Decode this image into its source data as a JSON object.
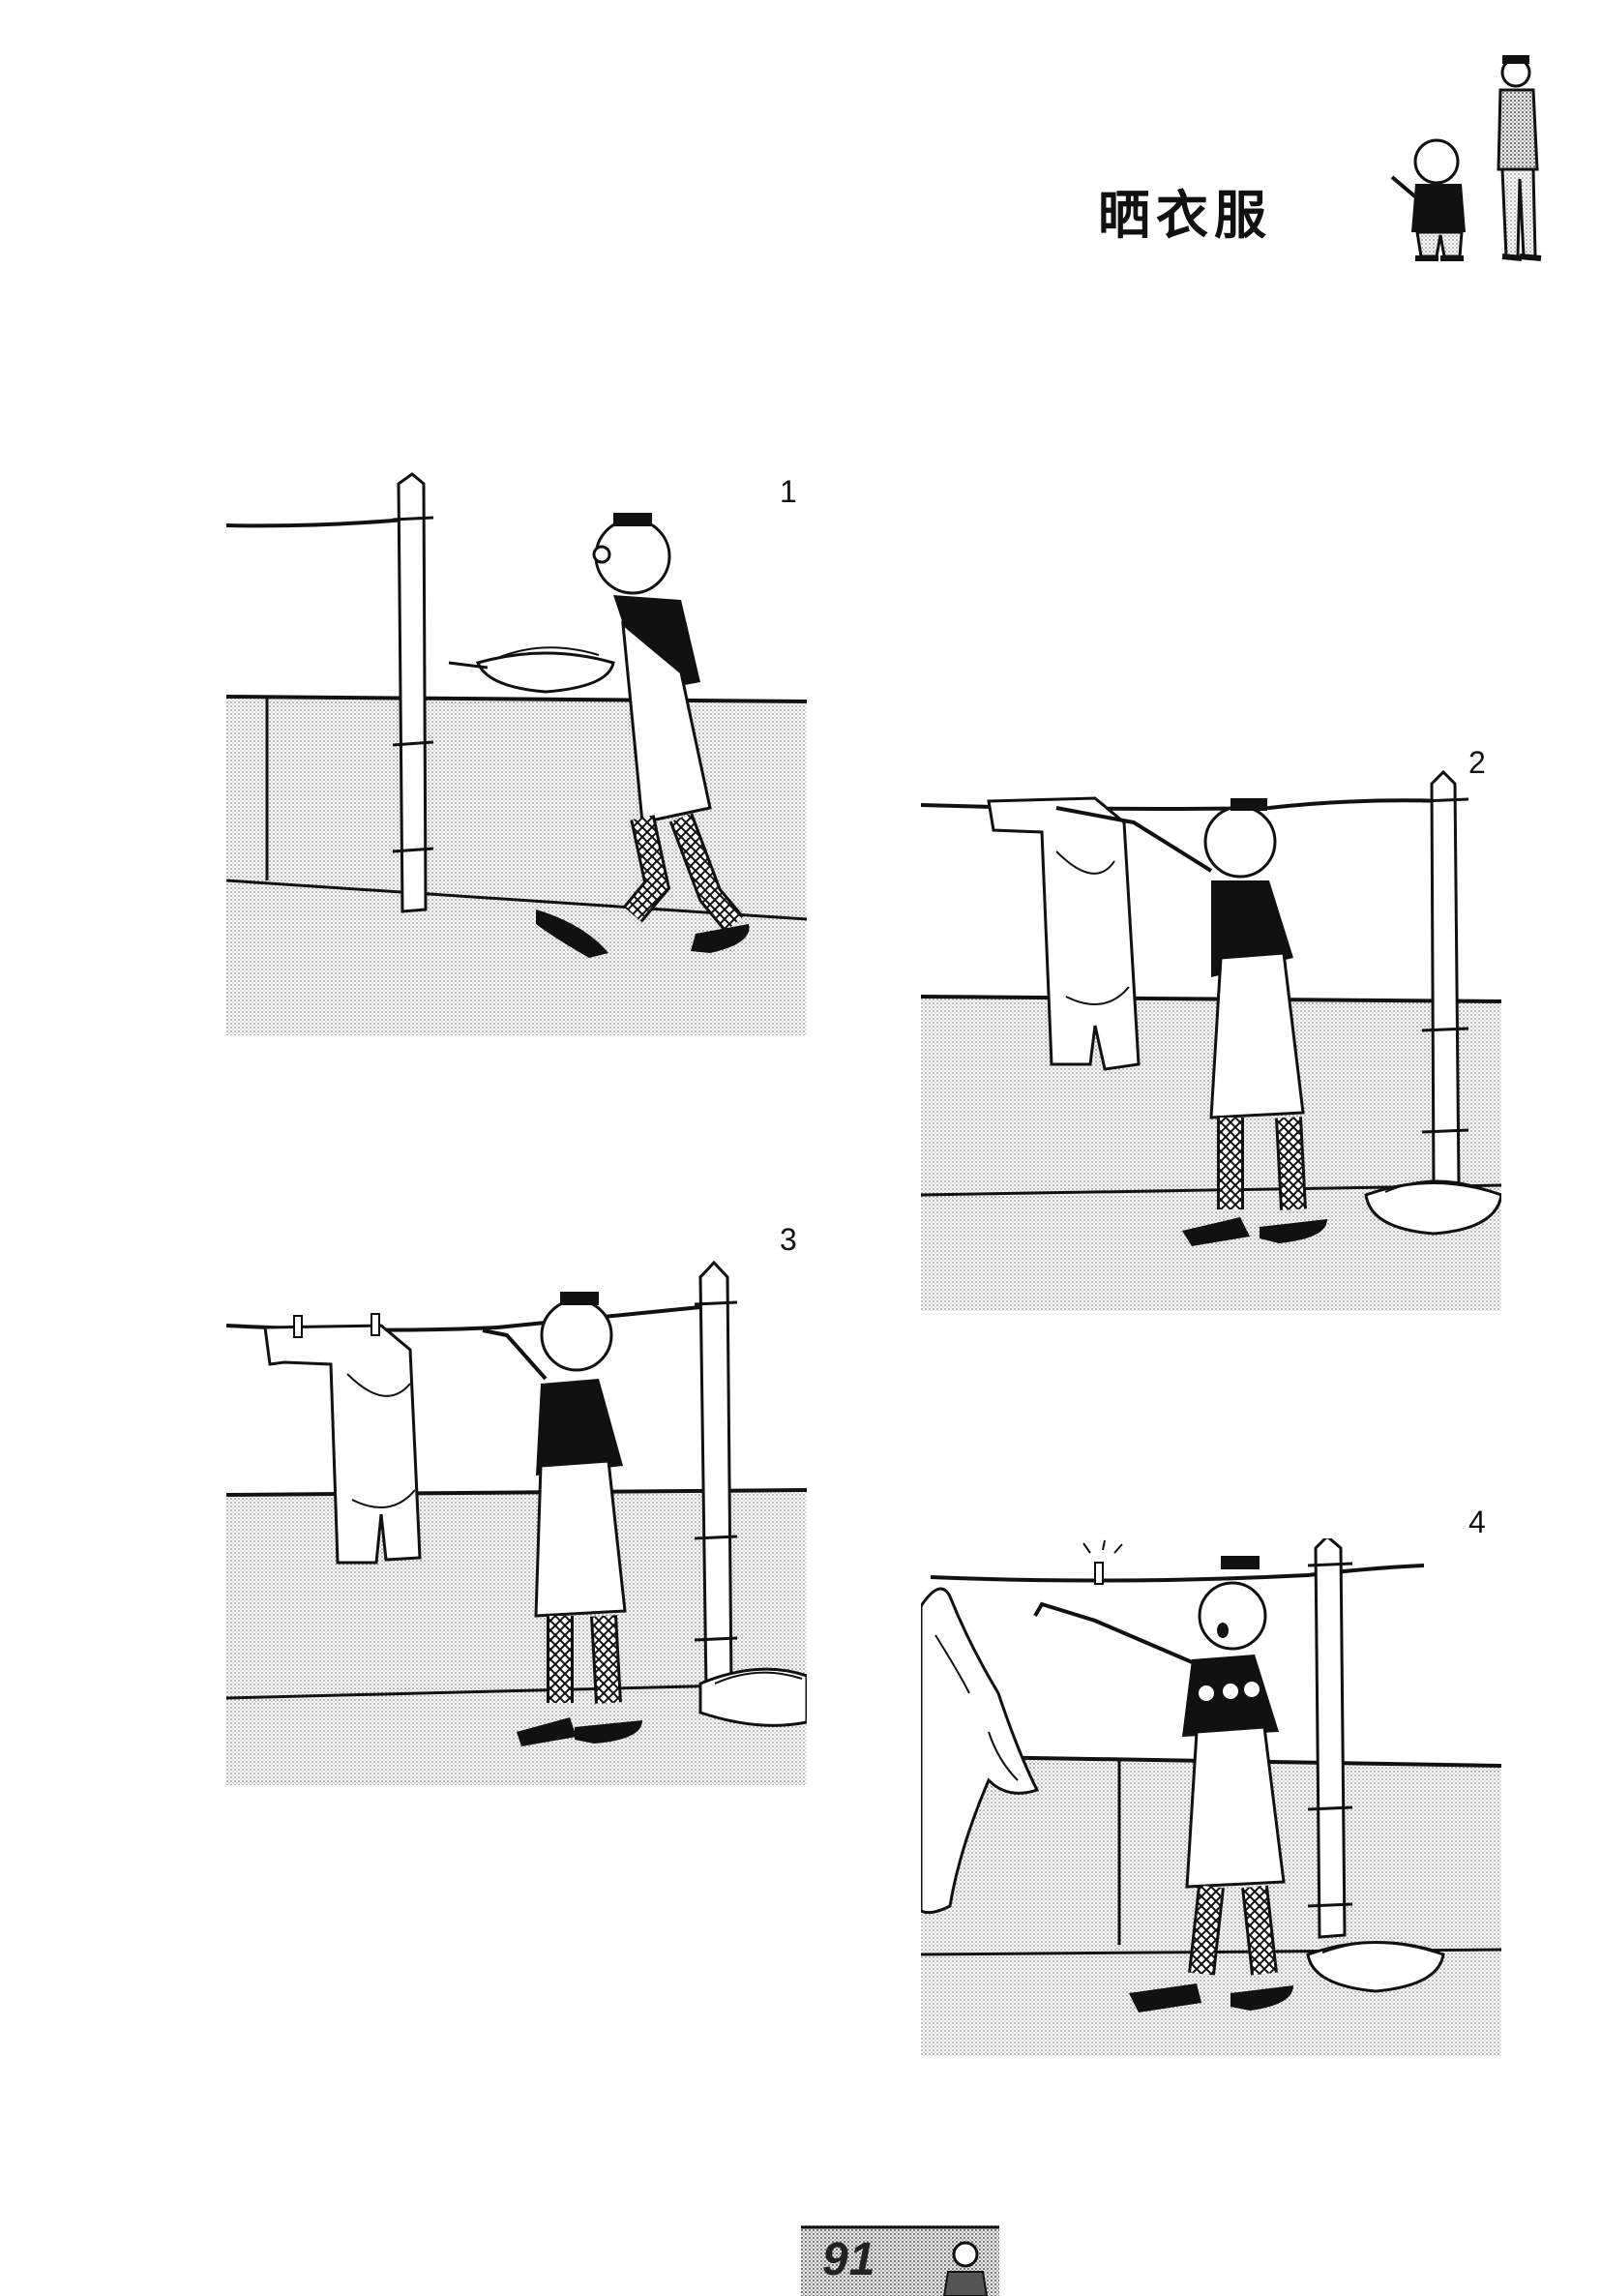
{
  "page": {
    "title": "晒衣服",
    "page_number": "91"
  },
  "panels": [
    {
      "number": "1"
    },
    {
      "number": "2"
    },
    {
      "number": "3"
    },
    {
      "number": "4"
    }
  ],
  "colors": {
    "ink": "#111111",
    "ground_tone": "#c8c8c8",
    "paper": "#ffffff"
  }
}
